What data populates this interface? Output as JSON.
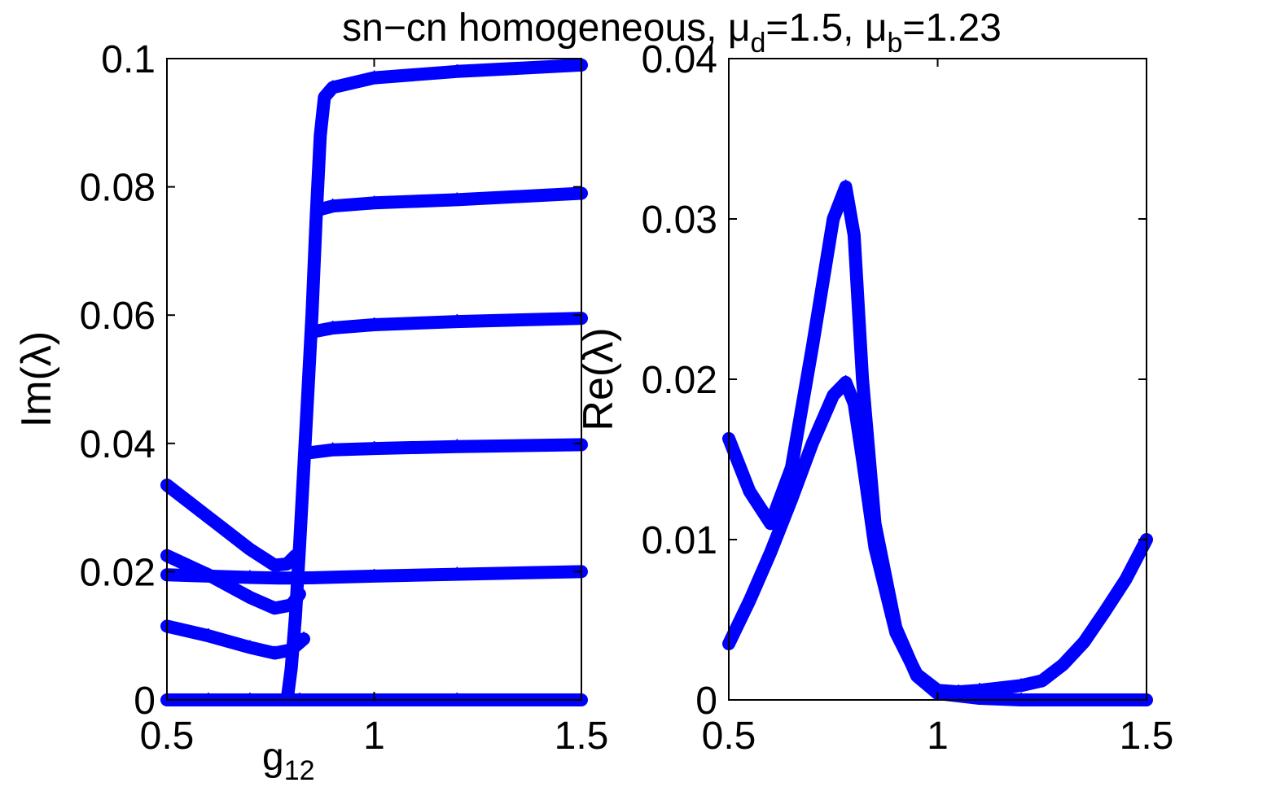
{
  "figure": {
    "title_main": "sn−cn homogeneous, μ",
    "title_sub1": "d",
    "title_mid": "=1.5, μ",
    "title_sub2": "b",
    "title_end": "=1.23"
  },
  "chart_data": [
    {
      "type": "scatter",
      "xlabel": "g",
      "xlabel_sub": "12",
      "ylabel": "Im(λ)",
      "xlim": [
        0.5,
        1.5
      ],
      "ylim": [
        0,
        0.1
      ],
      "xticks": [
        "0.5",
        "1",
        "1.5"
      ],
      "xtick_values": [
        0.5,
        1,
        1.5
      ],
      "yticks": [
        "0",
        "0.02",
        "0.04",
        "0.06",
        "0.08",
        "0.1"
      ],
      "ytick_values": [
        0,
        0.02,
        0.04,
        0.06,
        0.08,
        0.1
      ],
      "color": "#0000ff",
      "marker": "*",
      "series": [
        {
          "x": [
            0.5,
            0.6,
            0.7,
            0.78,
            0.82,
            1.0,
            1.2,
            1.5
          ],
          "y": [
            0,
            0,
            0,
            0,
            0,
            0,
            0,
            0
          ]
        },
        {
          "x": [
            0.5,
            0.6,
            0.7,
            0.77,
            0.82,
            1.0,
            1.2,
            1.5
          ],
          "y": [
            0.0195,
            0.0193,
            0.0191,
            0.019,
            0.019,
            0.0193,
            0.0196,
            0.02
          ]
        },
        {
          "x": [
            0.5,
            0.6,
            0.7,
            0.76,
            0.8,
            0.83
          ],
          "y": [
            0.0115,
            0.01,
            0.0082,
            0.0073,
            0.0078,
            0.0095
          ]
        },
        {
          "x": [
            0.5,
            0.6,
            0.7,
            0.76,
            0.8,
            0.82
          ],
          "y": [
            0.0225,
            0.0195,
            0.016,
            0.0143,
            0.0148,
            0.0165
          ]
        },
        {
          "x": [
            0.5,
            0.6,
            0.7,
            0.76,
            0.79,
            0.81
          ],
          "y": [
            0.0335,
            0.0285,
            0.0235,
            0.021,
            0.0212,
            0.0225
          ]
        },
        {
          "x": [
            0.79,
            0.8,
            0.81,
            0.82,
            0.83,
            0.84,
            0.85,
            0.86,
            0.87,
            0.88,
            0.9,
            1.0,
            1.2,
            1.5
          ],
          "y": [
            0.0,
            0.005,
            0.013,
            0.024,
            0.036,
            0.048,
            0.06,
            0.075,
            0.088,
            0.094,
            0.0955,
            0.097,
            0.098,
            0.099
          ]
        },
        {
          "x": [
            0.87,
            0.9,
            1.0,
            1.2,
            1.5
          ],
          "y": [
            0.0765,
            0.077,
            0.0775,
            0.078,
            0.079
          ]
        },
        {
          "x": [
            0.86,
            0.9,
            1.0,
            1.2,
            1.5
          ],
          "y": [
            0.0575,
            0.058,
            0.0585,
            0.059,
            0.0595
          ]
        },
        {
          "x": [
            0.84,
            0.9,
            1.0,
            1.2,
            1.5
          ],
          "y": [
            0.0385,
            0.039,
            0.0392,
            0.0395,
            0.0398
          ]
        }
      ]
    },
    {
      "type": "scatter",
      "xlabel": "",
      "ylabel": "Re(λ)",
      "xlim": [
        0.5,
        1.5
      ],
      "ylim": [
        0,
        0.04
      ],
      "xticks": [
        "0.5",
        "1",
        "1.5"
      ],
      "xtick_values": [
        0.5,
        1,
        1.5
      ],
      "yticks": [
        "0",
        "0.01",
        "0.02",
        "0.03",
        "0.04"
      ],
      "ytick_values": [
        0,
        0.01,
        0.02,
        0.03,
        0.04
      ],
      "color": "#0000ff",
      "marker": "*",
      "series": [
        {
          "x": [
            0.5,
            0.55,
            0.6,
            0.65,
            0.7,
            0.75,
            0.78,
            0.8,
            0.82,
            0.85,
            0.9,
            0.95,
            1.0,
            1.1,
            1.2,
            1.5
          ],
          "y": [
            0.0163,
            0.013,
            0.011,
            0.0145,
            0.022,
            0.03,
            0.032,
            0.029,
            0.02,
            0.011,
            0.0045,
            0.0015,
            0.0004,
            0.0001,
            0.0,
            0.0
          ]
        },
        {
          "x": [
            0.5,
            0.55,
            0.6,
            0.65,
            0.7,
            0.75,
            0.78,
            0.8,
            0.82,
            0.85,
            0.9,
            0.95,
            1.0,
            1.05,
            1.1,
            1.2,
            1.25,
            1.3,
            1.35,
            1.4,
            1.45,
            1.5
          ],
          "y": [
            0.0035,
            0.0062,
            0.0092,
            0.0125,
            0.016,
            0.019,
            0.0198,
            0.0185,
            0.015,
            0.0095,
            0.0042,
            0.0016,
            0.0006,
            0.0005,
            0.0006,
            0.0009,
            0.0012,
            0.0022,
            0.0036,
            0.0055,
            0.0075,
            0.01
          ]
        }
      ]
    }
  ]
}
